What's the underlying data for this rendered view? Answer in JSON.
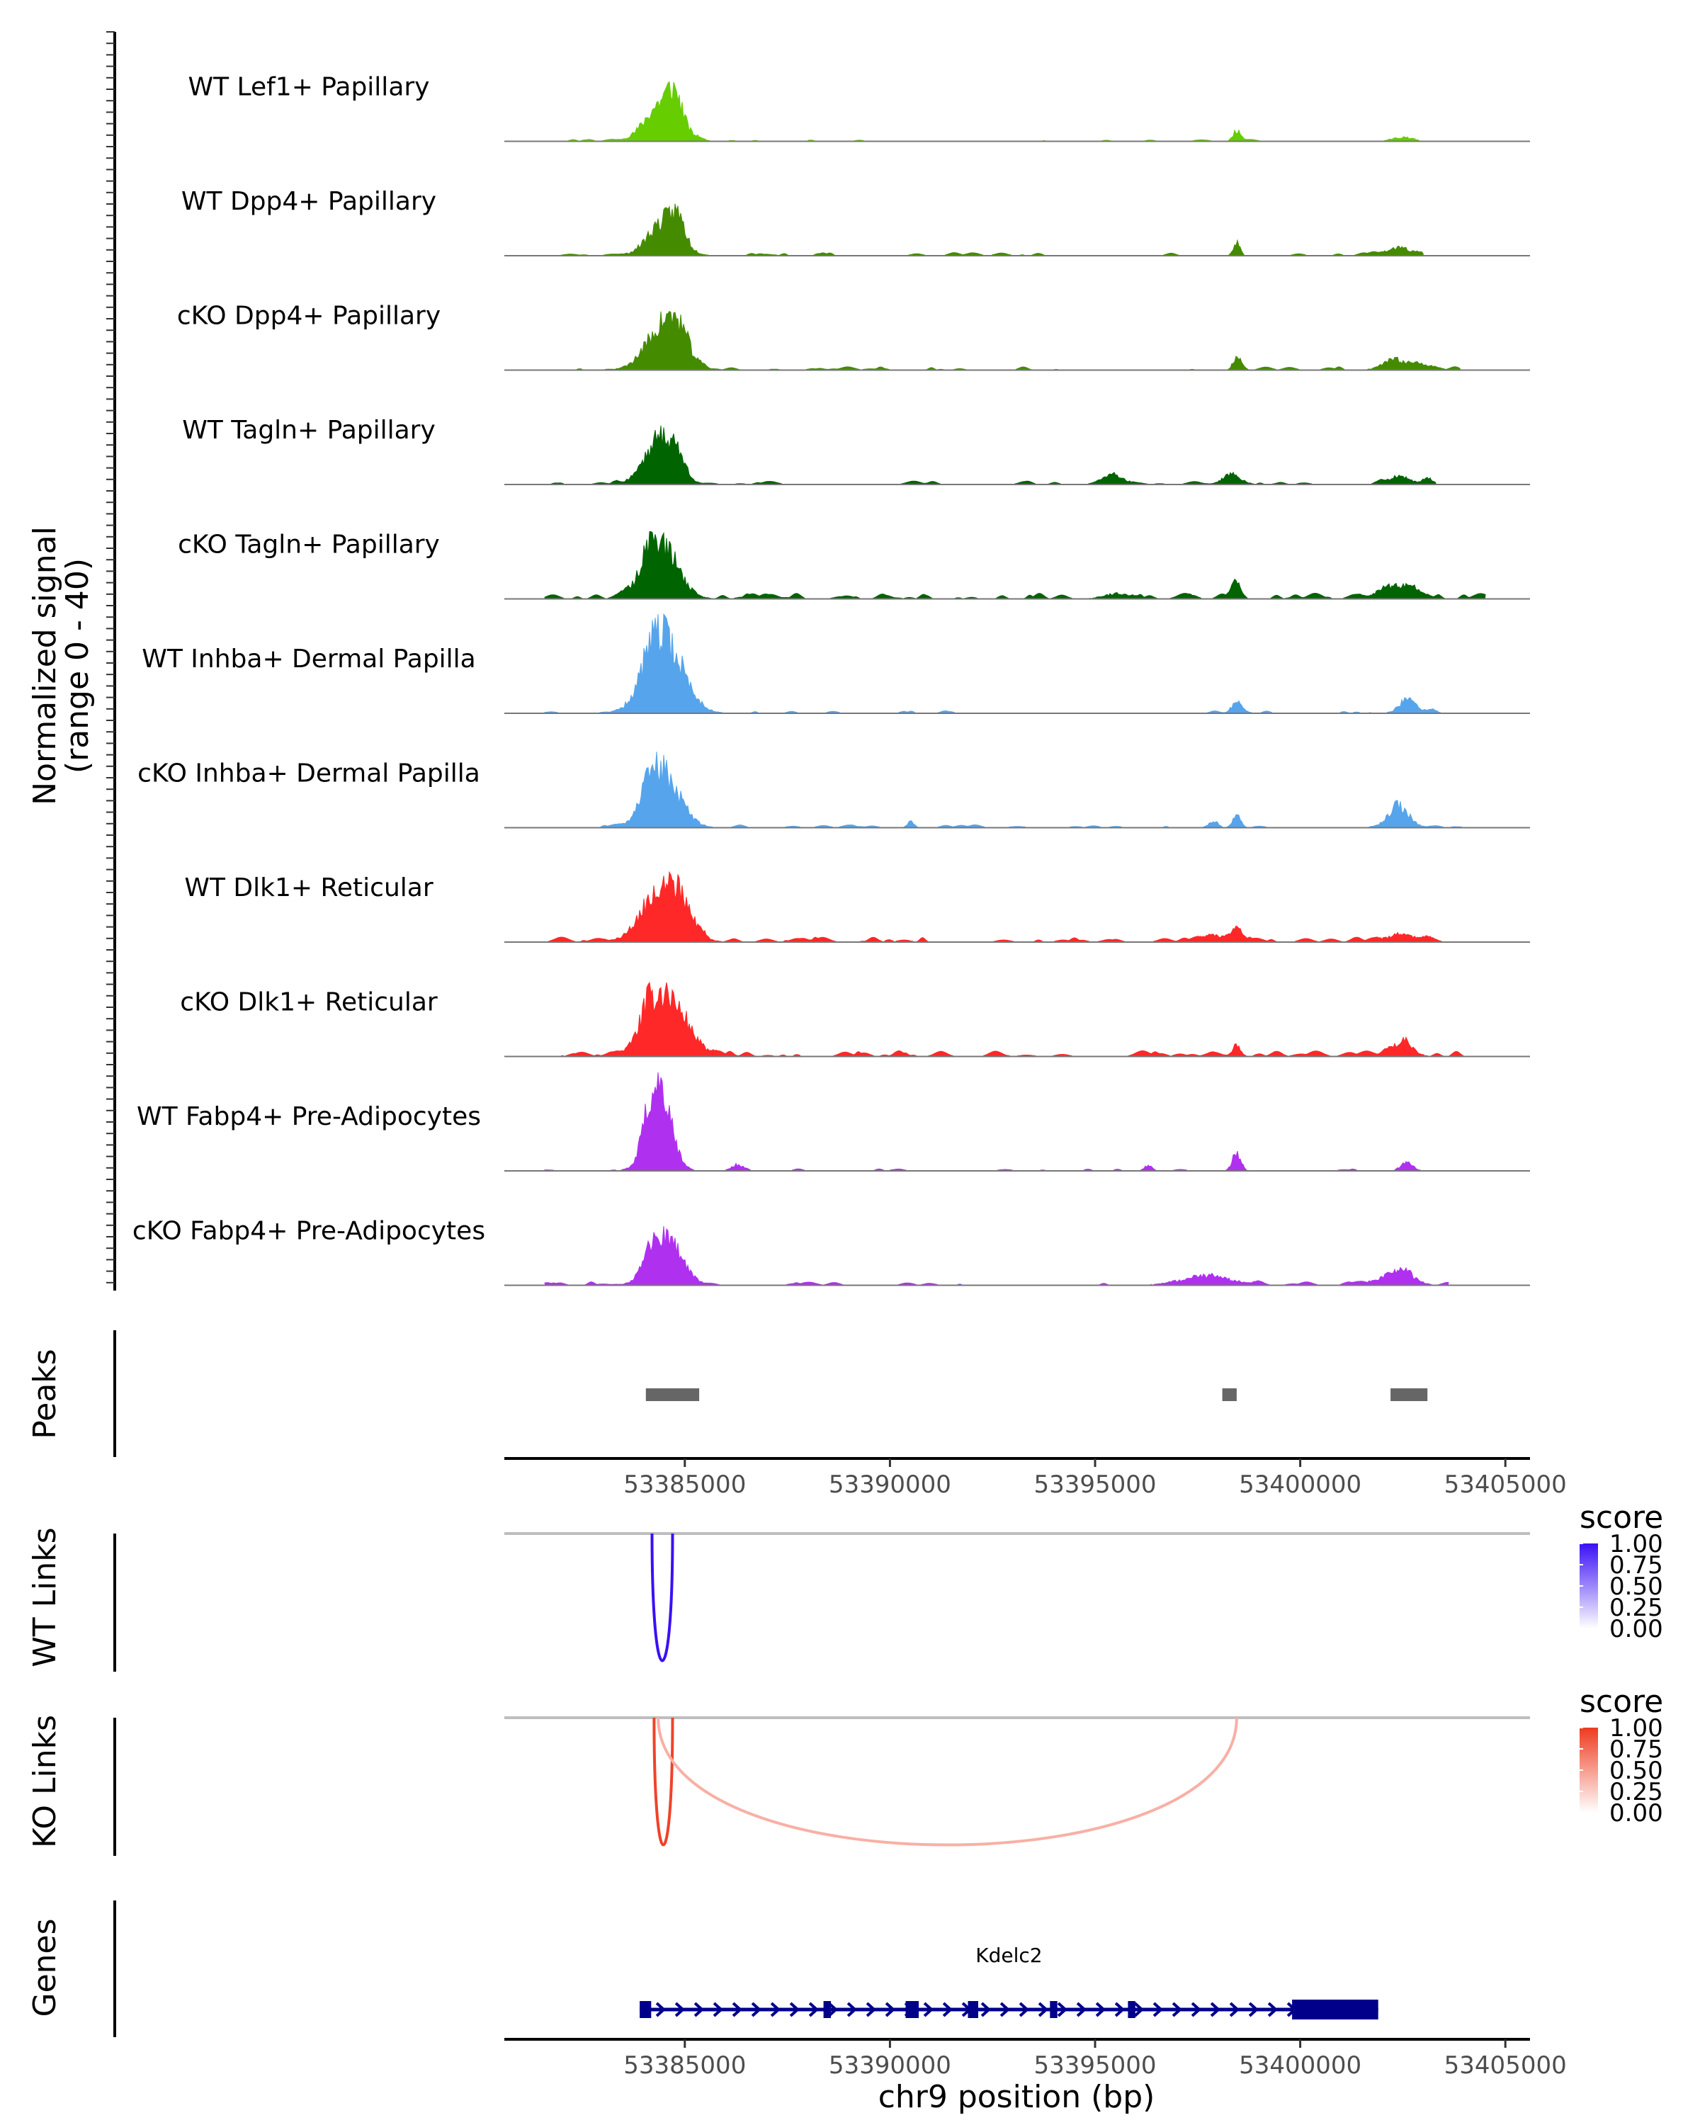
{
  "chart_data": {
    "type": "area",
    "title": "",
    "chromosome": "chr9",
    "xlabel": "chr9 position (bp)",
    "xlim": [
      53380600,
      53405600
    ],
    "x_ticks": [
      53385000,
      53390000,
      53395000,
      53400000,
      53405000
    ],
    "x_tick_labels": [
      "53385000",
      "53390000",
      "53395000",
      "53400000",
      "53405000"
    ],
    "coverage": {
      "ylabel_line1": "Normalized signal",
      "ylabel_line2": "(range 0 - 40)",
      "ylim": [
        0,
        40
      ],
      "tracks": [
        {
          "name": "WT Lef1+ Papillary",
          "color": "#66CD00",
          "seed": 11,
          "peaks": [
            [
              53384450,
              400,
              29
            ],
            [
              53384750,
              180,
              18
            ],
            [
              53398450,
              90,
              8
            ],
            [
              53402500,
              260,
              3
            ]
          ],
          "noise": 0.35,
          "extent": [
            53381600,
            53402900
          ]
        },
        {
          "name": "WT Dpp4+ Papillary",
          "color": "#458B00",
          "seed": 23,
          "peaks": [
            [
              53384500,
              380,
              27
            ],
            [
              53384850,
              160,
              14
            ],
            [
              53398450,
              80,
              10
            ],
            [
              53402400,
              300,
              6
            ]
          ],
          "noise": 0.55,
          "extent": [
            53381600,
            53403000
          ]
        },
        {
          "name": "cKO Dpp4+ Papillary",
          "color": "#458B00",
          "seed": 37,
          "peaks": [
            [
              53384500,
              420,
              35
            ],
            [
              53384900,
              200,
              14
            ],
            [
              53398450,
              90,
              9
            ],
            [
              53402300,
              280,
              8
            ],
            [
              53403000,
              250,
              3
            ]
          ],
          "noise": 0.6,
          "extent": [
            53381600,
            53403900
          ]
        },
        {
          "name": "WT Tagln+ Papillary",
          "color": "#006400",
          "seed": 41,
          "peaks": [
            [
              53384300,
              350,
              29
            ],
            [
              53384750,
              250,
              20
            ],
            [
              53395500,
              220,
              6
            ],
            [
              53398350,
              220,
              7
            ],
            [
              53402400,
              260,
              6
            ],
            [
              53403100,
              120,
              5
            ]
          ],
          "noise": 0.6,
          "extent": [
            53381600,
            53403300
          ]
        },
        {
          "name": "cKO Tagln+ Papillary",
          "color": "#006400",
          "seed": 53,
          "peaks": [
            [
              53384450,
              400,
              39
            ],
            [
              53384100,
              200,
              14
            ],
            [
              53398450,
              100,
              12
            ],
            [
              53402400,
              400,
              10
            ],
            [
              53395500,
              300,
              4
            ]
          ],
          "noise": 1.1,
          "extent": [
            53381600,
            53404500
          ]
        },
        {
          "name": "WT Inhba+ Dermal Papilla",
          "color": "#56A5EC",
          "seed": 67,
          "peaks": [
            [
              53384550,
              450,
              49
            ],
            [
              53384200,
              300,
              20
            ],
            [
              53398450,
              120,
              8
            ],
            [
              53402600,
              200,
              10
            ],
            [
              53403200,
              120,
              3
            ]
          ],
          "noise": 0.45,
          "extent": [
            53381600,
            53404500
          ]
        },
        {
          "name": "cKO Inhba+ Dermal Papilla",
          "color": "#56A5EC",
          "seed": 71,
          "peaks": [
            [
              53384500,
              400,
              38
            ],
            [
              53384150,
              250,
              16
            ],
            [
              53398450,
              100,
              9
            ],
            [
              53402400,
              250,
              16
            ],
            [
              53397900,
              100,
              5
            ],
            [
              53390500,
              80,
              5
            ]
          ],
          "noise": 0.5,
          "extent": [
            53381600,
            53404500
          ]
        },
        {
          "name": "WT Dlk1+ Reticular",
          "color": "#FF2828",
          "seed": 83,
          "peaks": [
            [
              53384450,
              480,
              40
            ],
            [
              53384900,
              250,
              16
            ],
            [
              53398450,
              100,
              12
            ],
            [
              53402500,
              400,
              5
            ],
            [
              53397900,
              200,
              4
            ]
          ],
          "noise": 0.9,
          "extent": [
            53381600,
            53404500
          ]
        },
        {
          "name": "cKO Dlk1+ Reticular",
          "color": "#FF2828",
          "seed": 97,
          "peaks": [
            [
              53384550,
              450,
              45
            ],
            [
              53384100,
              250,
              14
            ],
            [
              53398450,
              100,
              9
            ],
            [
              53402500,
              250,
              9
            ]
          ],
          "noise": 1.0,
          "extent": [
            53381600,
            53404000
          ]
        },
        {
          "name": "WT Fabp4+ Pre-Adipocytes",
          "color": "#B030F0",
          "seed": 101,
          "peaks": [
            [
              53384400,
              280,
              56
            ],
            [
              53384150,
              200,
              20
            ],
            [
              53398450,
              100,
              14
            ],
            [
              53402600,
              150,
              6
            ],
            [
              53386300,
              150,
              5
            ],
            [
              53396300,
              100,
              4
            ]
          ],
          "noise": 0.35,
          "extent": [
            53381600,
            53404000
          ]
        },
        {
          "name": "cKO Fabp4+ Pre-Adipocytes",
          "color": "#B030F0",
          "seed": 113,
          "peaks": [
            [
              53384550,
              380,
              33
            ],
            [
              53384150,
              220,
              10
            ],
            [
              53397700,
              600,
              7
            ],
            [
              53402500,
              300,
              9
            ],
            [
              53402000,
              300,
              4
            ]
          ],
          "noise": 0.6,
          "extent": [
            53381600,
            53403600
          ]
        }
      ]
    },
    "peaks": {
      "label": "Peaks",
      "color": "#666666",
      "regions": [
        [
          53384050,
          53385350
        ],
        [
          53398100,
          53398450
        ],
        [
          53402200,
          53403100
        ]
      ]
    },
    "links": [
      {
        "label": "WT Links",
        "color_max": "#3B10F5",
        "links": [
          [
            53384200,
            53384700,
            1.0
          ]
        ],
        "legend": {
          "title": "score",
          "ticks": [
            "1.00",
            "0.75",
            "0.50",
            "0.25",
            "0.00"
          ],
          "low_color": "#FFFFFF",
          "high_color": "#3B10F5"
        }
      },
      {
        "label": "KO Links",
        "color_max": "#EE3B20",
        "links": [
          [
            53384250,
            53384700,
            0.95
          ],
          [
            53384350,
            53398450,
            0.3
          ]
        ],
        "legend": {
          "title": "score",
          "ticks": [
            "1.00",
            "0.75",
            "0.50",
            "0.25",
            "0.00"
          ],
          "low_color": "#FFFFFF",
          "high_color": "#EE3B20"
        }
      }
    ],
    "genes": {
      "label": "Genes",
      "color": "#00008B",
      "items": [
        {
          "name": "Kdelc2",
          "strand": "+",
          "start": 53383900,
          "end": 53401900,
          "exons": [
            [
              53383900,
              53384180
            ],
            [
              53388380,
              53388560
            ],
            [
              53390380,
              53390700
            ],
            [
              53391900,
              53392150
            ],
            [
              53393900,
              53394080
            ],
            [
              53395800,
              53395980
            ],
            [
              53399800,
              53401900
            ]
          ],
          "thick_exon_index": 6
        }
      ]
    }
  }
}
